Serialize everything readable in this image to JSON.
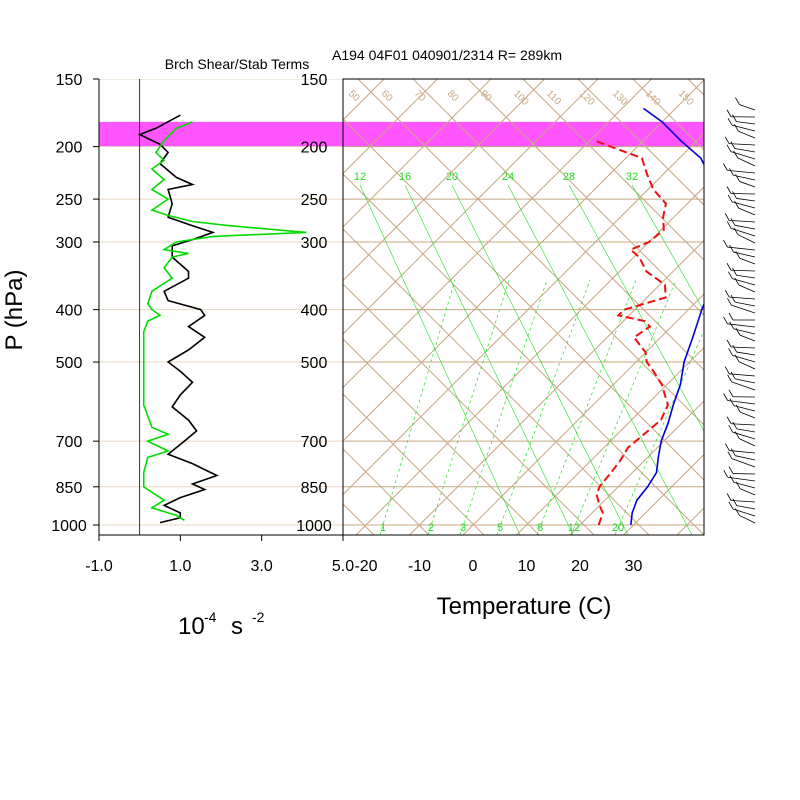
{
  "chart_data": [
    {
      "type": "line",
      "title": "Brch Shear/Stab Terms",
      "xlabel_base": "10",
      "xlabel_exp": "-4",
      "xlabel_unit": "s",
      "xlabel_unit_exp": "-2",
      "ylabel": "P (hPa)",
      "y_scale": "log",
      "xlim": [
        -1.0,
        5.0
      ],
      "x_tick_labels": [
        "-1.0",
        "1.0",
        "3.0",
        "5.0"
      ],
      "x_ticks": [
        -1,
        1,
        3,
        5
      ],
      "y_ticks": [
        150,
        200,
        250,
        300,
        400,
        500,
        700,
        850,
        1000
      ],
      "y_tick_labels": [
        "150",
        "200",
        "250",
        "300",
        "400",
        "500",
        "700",
        "850",
        "1000"
      ],
      "ylim": [
        1000,
        150
      ],
      "colors": {
        "black_series": "#000000",
        "green_series": "#00dd00",
        "highlight_band": "#ff55ff"
      },
      "highlight_band_p": [
        180,
        200
      ],
      "series": [
        {
          "color": "#000000",
          "points": [
            [
              1.0,
              175
            ],
            [
              0.4,
              185
            ],
            [
              0.0,
              190
            ],
            [
              0.5,
              198
            ],
            [
              0.7,
              205
            ],
            [
              0.5,
              215
            ],
            [
              0.9,
              228
            ],
            [
              1.3,
              235
            ],
            [
              0.7,
              240
            ],
            [
              0.8,
              255
            ],
            [
              0.7,
              270
            ],
            [
              1.3,
              280
            ],
            [
              1.8,
              288
            ],
            [
              1.3,
              297
            ],
            [
              0.8,
              305
            ],
            [
              0.8,
              320
            ],
            [
              1.2,
              340
            ],
            [
              1.2,
              350
            ],
            [
              0.6,
              370
            ],
            [
              0.7,
              385
            ],
            [
              1.5,
              400
            ],
            [
              1.6,
              410
            ],
            [
              1.2,
              430
            ],
            [
              1.6,
              450
            ],
            [
              1.2,
              475
            ],
            [
              0.7,
              500
            ],
            [
              1.0,
              520
            ],
            [
              1.3,
              545
            ],
            [
              1.0,
              575
            ],
            [
              0.8,
              605
            ],
            [
              1.2,
              640
            ],
            [
              1.4,
              670
            ],
            [
              1.1,
              700
            ],
            [
              0.7,
              740
            ],
            [
              1.3,
              770
            ],
            [
              1.6,
              790
            ],
            [
              1.9,
              810
            ],
            [
              1.3,
              840
            ],
            [
              1.6,
              860
            ],
            [
              1.0,
              890
            ],
            [
              0.6,
              920
            ],
            [
              1.0,
              950
            ],
            [
              1.0,
              970
            ],
            [
              0.5,
              990
            ]
          ]
        },
        {
          "color": "#00dd00",
          "points": [
            [
              1.3,
              180
            ],
            [
              0.9,
              185
            ],
            [
              0.6,
              195
            ],
            [
              0.4,
              205
            ],
            [
              0.6,
              212
            ],
            [
              0.3,
              220
            ],
            [
              0.6,
              230
            ],
            [
              0.3,
              240
            ],
            [
              0.7,
              250
            ],
            [
              0.3,
              262
            ],
            [
              0.7,
              268
            ],
            [
              1.3,
              275
            ],
            [
              2.2,
              280
            ],
            [
              4.1,
              288
            ],
            [
              1.8,
              293
            ],
            [
              0.9,
              300
            ],
            [
              0.6,
              310
            ],
            [
              1.2,
              315
            ],
            [
              0.8,
              320
            ],
            [
              0.6,
              335
            ],
            [
              0.8,
              350
            ],
            [
              0.3,
              370
            ],
            [
              0.2,
              390
            ],
            [
              0.3,
              400
            ],
            [
              0.5,
              410
            ],
            [
              0.2,
              420
            ],
            [
              0.1,
              440
            ],
            [
              0.1,
              480
            ],
            [
              0.1,
              520
            ],
            [
              0.1,
              600
            ],
            [
              0.3,
              660
            ],
            [
              0.7,
              680
            ],
            [
              0.2,
              700
            ],
            [
              0.7,
              730
            ],
            [
              0.2,
              750
            ],
            [
              0.1,
              800
            ],
            [
              0.1,
              850
            ],
            [
              0.6,
              900
            ],
            [
              0.3,
              930
            ],
            [
              0.9,
              960
            ],
            [
              1.1,
              980
            ]
          ]
        }
      ]
    },
    {
      "type": "line",
      "title": "A194 04F01 040901/2314 R= 289km",
      "xlabel": "Temperature (C)",
      "ylabel": "P (hPa)",
      "y_scale": "log",
      "ylim": [
        1000,
        150
      ],
      "xlim": [
        -25,
        40
      ],
      "skew_per_decade": 80,
      "x_ticks": [
        -20,
        -10,
        0,
        10,
        20,
        30
      ],
      "x_tick_labels": [
        "-20",
        "-10",
        "0",
        "10",
        "20",
        "30"
      ],
      "y_ticks": [
        150,
        200,
        250,
        300,
        400,
        500,
        700,
        850,
        1000
      ],
      "y_tick_labels": [
        "150",
        "200",
        "250",
        "300",
        "400",
        "500",
        "700",
        "850",
        "1000"
      ],
      "mixing_ratio_labels_top": [
        "12",
        "16",
        "20",
        "24",
        "28",
        "32"
      ],
      "mixing_ratio_labels_bottom": [
        "1",
        "2",
        "3",
        "5",
        "8",
        "12",
        "20"
      ],
      "dry_adiabat_labels": [
        "50",
        "60",
        "70",
        "80",
        "90",
        "100",
        "110",
        "120",
        "130",
        "140",
        "150"
      ],
      "colors": {
        "temperature": "#0000dd",
        "dewpoint": "#ee1111",
        "isotherm": "#c8a882",
        "mixing_ratio": "#22dd22",
        "highlight_band": "#ff55ff"
      },
      "highlight_band_p": [
        180,
        200
      ],
      "series": [
        {
          "color": "#0000dd",
          "style": "solid",
          "points": [
            [
              29.5,
              1000
            ],
            [
              27.5,
              950
            ],
            [
              26.0,
              900
            ],
            [
              25.5,
              850
            ],
            [
              24.5,
              800
            ],
            [
              22.0,
              750
            ],
            [
              19.5,
              700
            ],
            [
              17.5,
              650
            ],
            [
              15.0,
              600
            ],
            [
              12.5,
              550
            ],
            [
              9.0,
              500
            ],
            [
              6.0,
              450
            ],
            [
              2.5,
              400
            ],
            [
              -1.0,
              350
            ],
            [
              -5.0,
              300
            ],
            [
              -10.0,
              270
            ],
            [
              -15.0,
              250
            ],
            [
              -20.0,
              230
            ],
            [
              -26.0,
              210
            ],
            [
              -33.0,
              195
            ],
            [
              -40.0,
              180
            ],
            [
              -46.0,
              170
            ]
          ]
        },
        {
          "color": "#ee1111",
          "style": "dashed",
          "points": [
            [
              23.5,
              1000
            ],
            [
              22.0,
              950
            ],
            [
              20.0,
              920
            ],
            [
              17.5,
              880
            ],
            [
              16.5,
              850
            ],
            [
              16.0,
              800
            ],
            [
              15.5,
              760
            ],
            [
              14.5,
              720
            ],
            [
              15.0,
              680
            ],
            [
              15.5,
              640
            ],
            [
              14.0,
              600
            ],
            [
              9.0,
              550
            ],
            [
              5.0,
              520
            ],
            [
              2.0,
              500
            ],
            [
              0.0,
              480
            ],
            [
              -5.0,
              450
            ],
            [
              -4.0,
              430
            ],
            [
              -6.0,
              420
            ],
            [
              -12.0,
              410
            ],
            [
              -12.0,
              400
            ],
            [
              -6.5,
              380
            ],
            [
              -9.0,
              360
            ],
            [
              -15.0,
              340
            ],
            [
              -19.0,
              320
            ],
            [
              -22.0,
              310
            ],
            [
              -20.0,
              300
            ],
            [
              -19.5,
              285
            ],
            [
              -22.0,
              270
            ],
            [
              -24.0,
              255
            ],
            [
              -29.0,
              240
            ],
            [
              -33.0,
              225
            ],
            [
              -37.0,
              210
            ],
            [
              -45.0,
              200
            ],
            [
              -49.0,
              195
            ]
          ]
        }
      ]
    }
  ]
}
